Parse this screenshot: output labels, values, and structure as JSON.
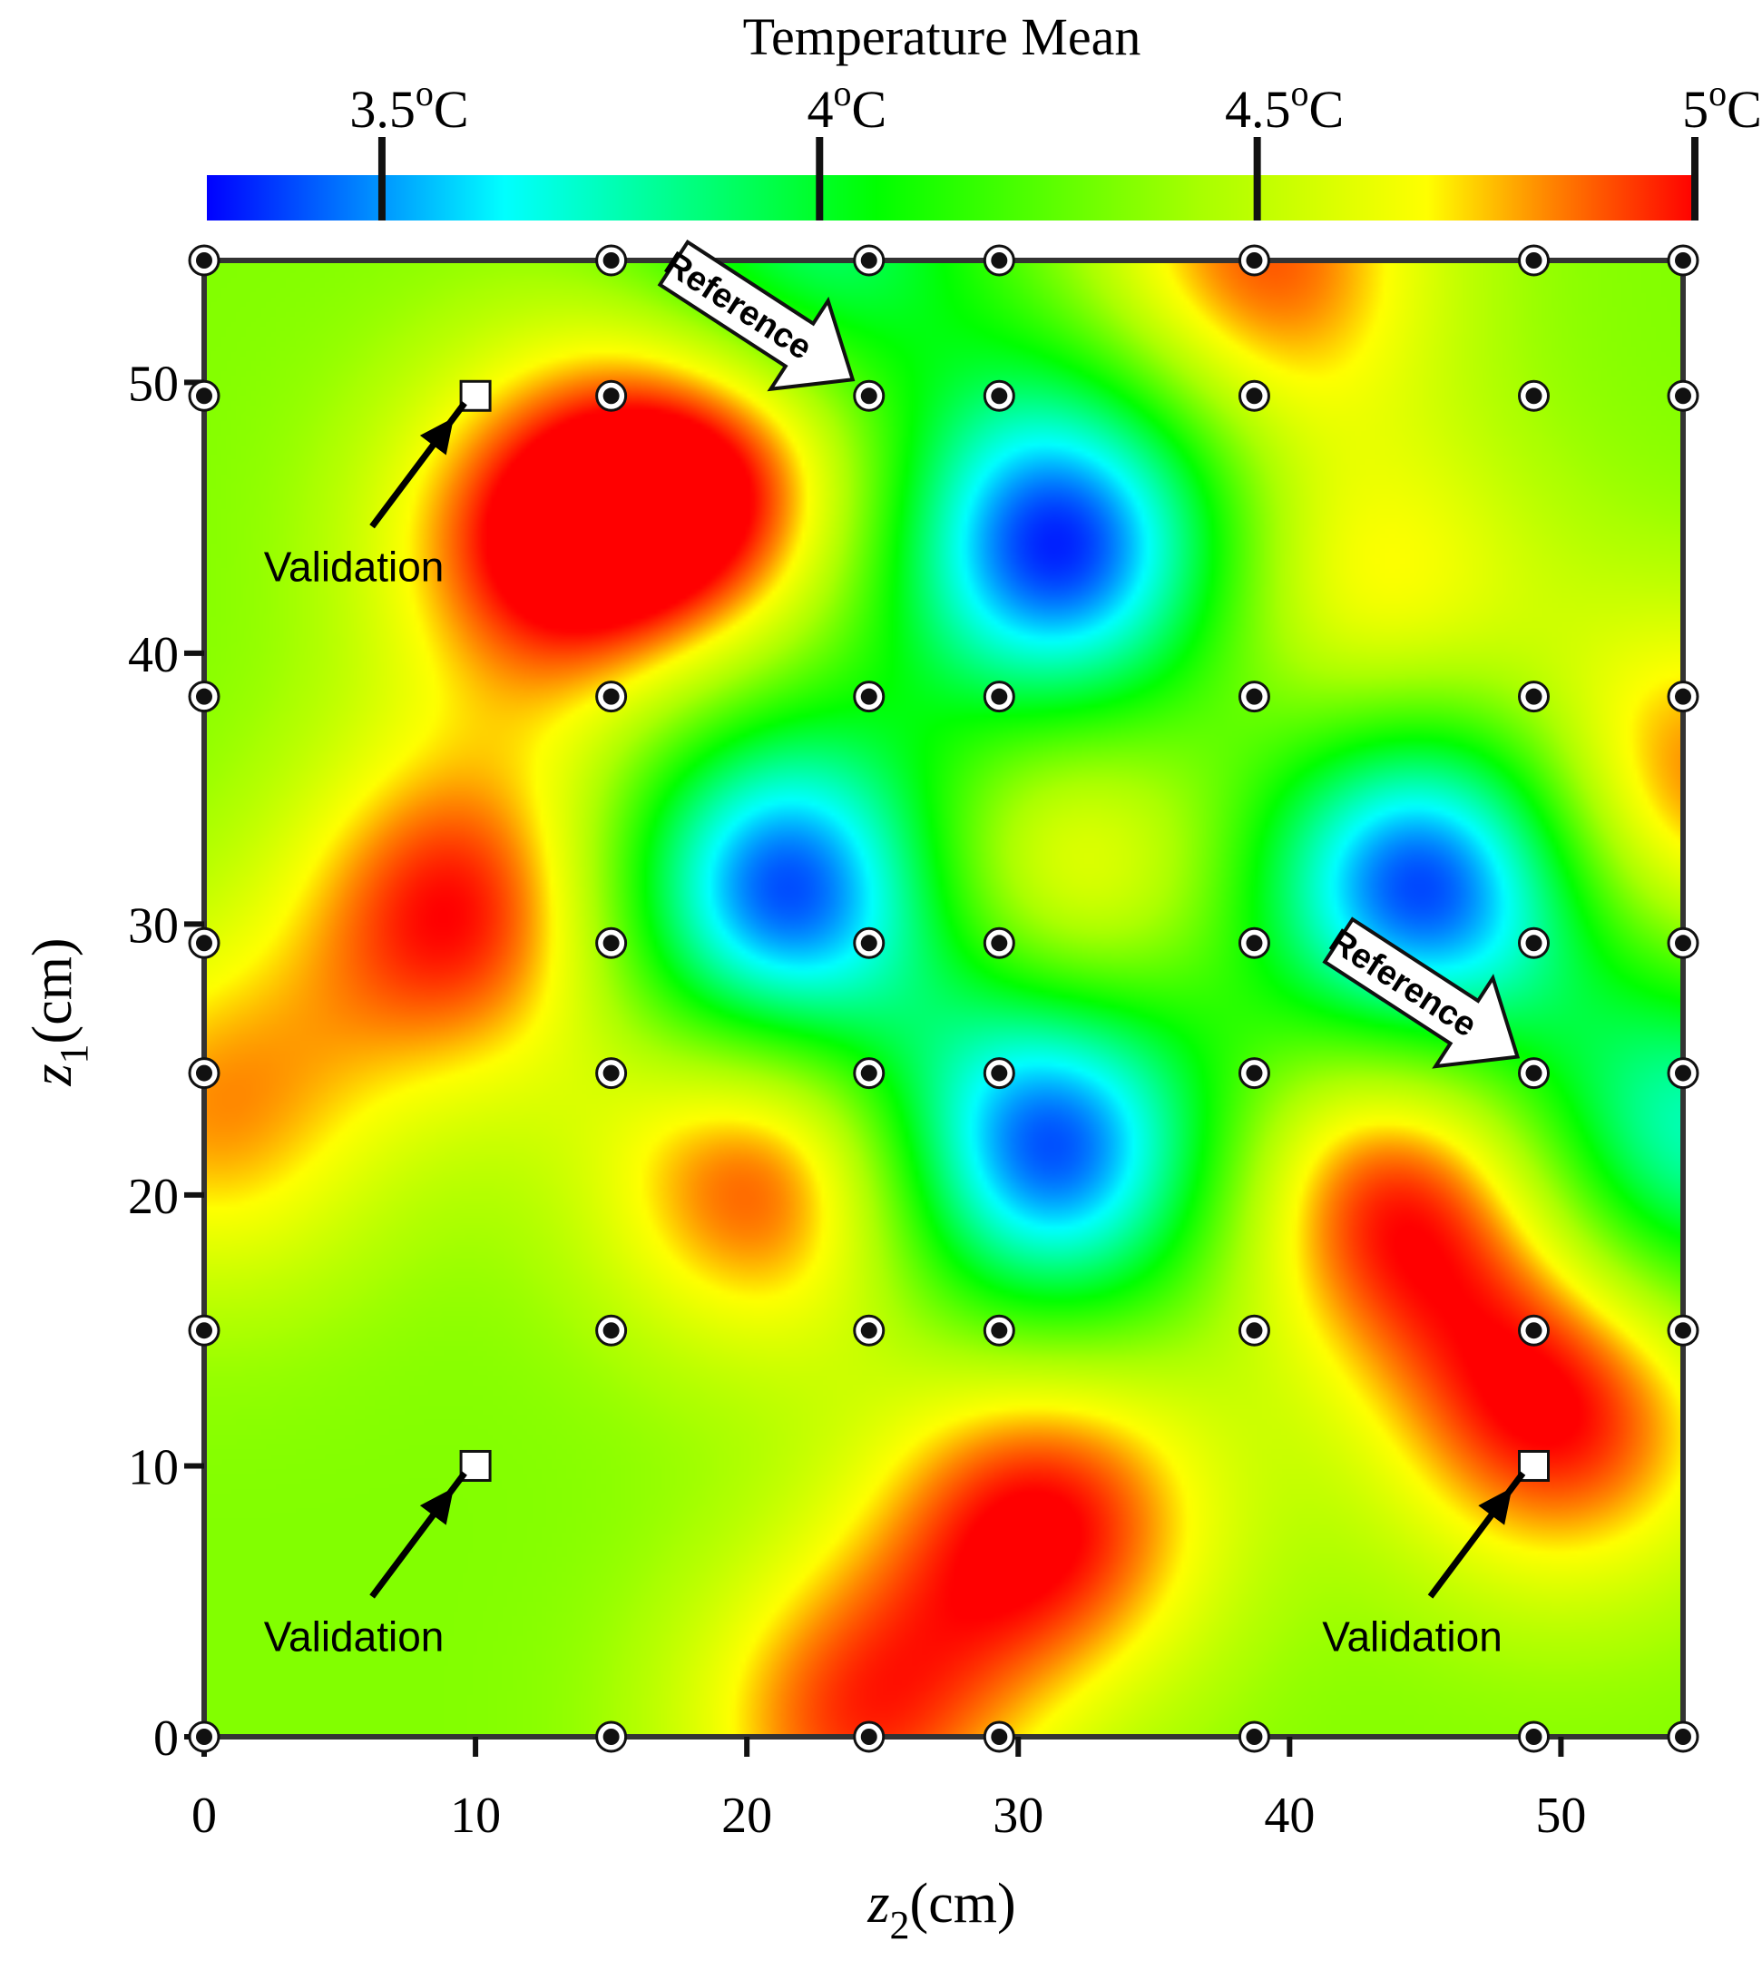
{
  "chart_data": {
    "type": "heatmap",
    "colorbar": {
      "title": "Temperature Mean",
      "range": [
        3.3,
        5.0
      ],
      "ticks": [
        {
          "value": 3.5,
          "num": "3.5",
          "sup": "o",
          "unit": "C"
        },
        {
          "value": 4.0,
          "num": "4",
          "sup": "o",
          "unit": "C"
        },
        {
          "value": 4.5,
          "num": "4.5",
          "sup": "o",
          "unit": "C"
        },
        {
          "value": 5.0,
          "num": "5",
          "sup": "o",
          "unit": "C"
        }
      ],
      "colors": [
        "#0000ff",
        "#00ffff",
        "#00ff00",
        "#aaff00",
        "#ffff00",
        "#ff8800",
        "#ff0000"
      ],
      "color_stops": [
        0.0,
        0.2,
        0.45,
        0.67,
        0.82,
        0.9,
        1.0
      ]
    },
    "xlabel": {
      "main": "z",
      "sub": "2",
      "unit": "(cm)"
    },
    "ylabel": {
      "main": "z",
      "sub": "1",
      "unit": "(cm)"
    },
    "xlim": [
      0,
      54.5
    ],
    "ylim": [
      0,
      54.5
    ],
    "xticks": [
      0,
      10,
      20,
      30,
      40,
      50
    ],
    "yticks": [
      0,
      10,
      20,
      30,
      40,
      50
    ],
    "xtick_labels": [
      "0",
      "10",
      "20",
      "30",
      "40",
      "50"
    ],
    "ytick_labels": [
      "0",
      "10",
      "20",
      "30",
      "40",
      "50"
    ],
    "field_hotspots": [
      {
        "x": 19,
        "y": 47,
        "value": 5.0
      },
      {
        "x": 13,
        "y": 44,
        "value": 5.0
      },
      {
        "x": 9.5,
        "y": 30.5,
        "value": 5.0
      },
      {
        "x": 21,
        "y": 21,
        "value": 5.0
      },
      {
        "x": 31,
        "y": 8,
        "value": 5.0
      },
      {
        "x": 44,
        "y": 20,
        "value": 5.0
      },
      {
        "x": 50,
        "y": 12,
        "value": 5.0
      },
      {
        "x": 43,
        "y": 42,
        "value": 4.75
      },
      {
        "x": 31.5,
        "y": 31.5,
        "value": 4.8
      },
      {
        "x": 24,
        "y": 0.5,
        "value": 4.9
      },
      {
        "x": 39,
        "y": 54.5,
        "value": 4.9
      },
      {
        "x": 54.5,
        "y": 35,
        "value": 4.9
      },
      {
        "x": 0.3,
        "y": 23,
        "value": 4.8
      },
      {
        "x": 31.5,
        "y": 44,
        "value": 3.3
      },
      {
        "x": 21.5,
        "y": 31,
        "value": 3.3
      },
      {
        "x": 31,
        "y": 22,
        "value": 3.3
      },
      {
        "x": 45,
        "y": 31.5,
        "value": 3.3
      },
      {
        "x": 22,
        "y": 54.5,
        "value": 3.8
      },
      {
        "x": 54.5,
        "y": 22,
        "value": 3.7
      }
    ],
    "background_value": 4.35,
    "sensor_points": {
      "x": [
        0,
        15,
        24.5,
        29.3,
        38.7,
        49,
        54.5
      ],
      "y": [
        0,
        15,
        24.5,
        29.3,
        38.4,
        49.5,
        54.5
      ]
    },
    "validation_points": [
      {
        "x": 10,
        "y": 49.5
      },
      {
        "x": 10,
        "y": 10
      },
      {
        "x": 49,
        "y": 10
      }
    ],
    "annotations": [
      {
        "text": "Validation",
        "kind": "validation",
        "target": {
          "x": 10,
          "y": 49.5
        }
      },
      {
        "text": "Validation",
        "kind": "validation",
        "target": {
          "x": 10,
          "y": 10
        }
      },
      {
        "text": "Validation",
        "kind": "validation",
        "target": {
          "x": 49,
          "y": 10
        }
      },
      {
        "text": "Reference",
        "kind": "reference",
        "target": {
          "x": 24.5,
          "y": 49.5
        }
      },
      {
        "text": "Reference",
        "kind": "reference",
        "target": {
          "x": 49,
          "y": 24.5
        }
      }
    ]
  }
}
